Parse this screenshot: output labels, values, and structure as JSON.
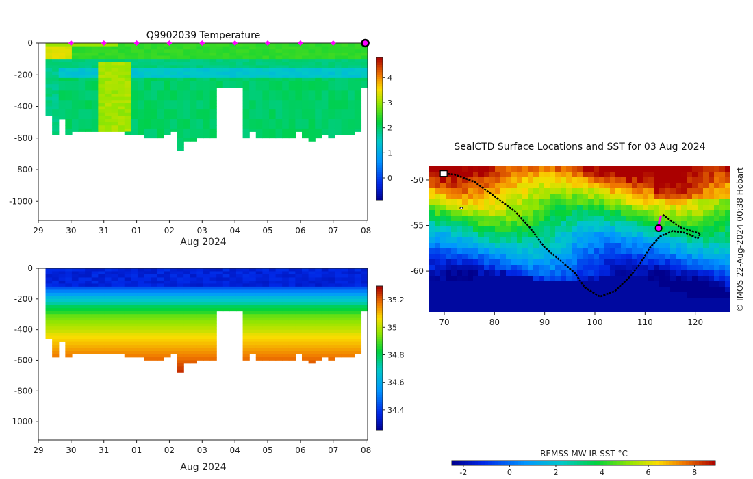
{
  "chart_data": [
    {
      "type": "heatmap",
      "title": "Q9902039  Temperature",
      "x_tick_labels": [
        "29",
        "30",
        "31",
        "01",
        "02",
        "03",
        "04",
        "05",
        "06",
        "07",
        "08"
      ],
      "xlabel": "Aug 2024",
      "y_tick_values": [
        0,
        -200,
        -400,
        -600,
        -800,
        -1000
      ],
      "ylim": [
        -1120,
        0
      ],
      "colorbar_ticks": [
        0,
        1,
        2,
        3,
        4
      ],
      "colorbar_range": [
        -0.9,
        4.8
      ],
      "profile_markers_days": [
        1,
        2,
        3,
        4,
        5,
        6,
        7,
        8,
        9
      ],
      "last_profile_marker_day": 10,
      "profile_max_depths": [
        460,
        580,
        470,
        580,
        550,
        550,
        550,
        550,
        550,
        550,
        550,
        560,
        580,
        580,
        580,
        590,
        600,
        600,
        580,
        560,
        670,
        620,
        610,
        600,
        600,
        600,
        600,
        600,
        610,
        560,
        600,
        560,
        600,
        600,
        600,
        590,
        590,
        590,
        550,
        600,
        610,
        600,
        580,
        590,
        580,
        580,
        580,
        560,
        390
      ],
      "profile_gaps": [
        [
          5.5,
          6.2
        ],
        [
          9.9,
          10.5
        ]
      ]
    },
    {
      "type": "heatmap",
      "title": "",
      "x_tick_labels": [
        "29",
        "30",
        "31",
        "01",
        "02",
        "03",
        "04",
        "05",
        "06",
        "07",
        "08"
      ],
      "xlabel": "Aug 2024",
      "y_tick_values": [
        0,
        -200,
        -400,
        -600,
        -800,
        -1000
      ],
      "ylim": [
        -1120,
        0
      ],
      "colorbar_ticks": [
        34.4,
        34.6,
        34.8,
        35,
        35.2
      ],
      "colorbar_range": [
        34.25,
        35.3
      ]
    },
    {
      "type": "heatmap",
      "title": "SealCTD Surface Locations and SST for 03 Aug 2024",
      "x_tick_values": [
        70,
        80,
        90,
        100,
        110,
        120
      ],
      "y_tick_values": [
        -50,
        -55,
        -60
      ],
      "xlim": [
        67,
        127
      ],
      "ylim": [
        -64.5,
        -48.5
      ],
      "colorbar_label": "REMSS MW-IR SST °C",
      "colorbar_ticks": [
        -2,
        0,
        2,
        4,
        6,
        8
      ],
      "colorbar_range": [
        -2.5,
        8.9
      ],
      "track_lon_lat": [
        [
          69.5,
          -49.3
        ],
        [
          72,
          -49.4
        ],
        [
          76,
          -50.2
        ],
        [
          80,
          -51.8
        ],
        [
          84,
          -53.4
        ],
        [
          87,
          -55.2
        ],
        [
          90,
          -57.4
        ],
        [
          93,
          -58.8
        ],
        [
          96,
          -60.2
        ],
        [
          98,
          -61.8
        ],
        [
          101,
          -62.8
        ],
        [
          104,
          -62.2
        ],
        [
          107,
          -60.6
        ],
        [
          109,
          -59.2
        ],
        [
          111,
          -57.4
        ],
        [
          113,
          -56.2
        ],
        [
          115.5,
          -55.6
        ],
        [
          118,
          -55.8
        ],
        [
          120.5,
          -56.4
        ],
        [
          121,
          -55.9
        ],
        [
          117,
          -55.2
        ],
        [
          114.5,
          -54.2
        ],
        [
          113.5,
          -53.8
        ]
      ],
      "current_lon_lat": [
        112.7,
        -55.3
      ],
      "recent_lon_lat": [
        [
          112.7,
          -55.3
        ],
        [
          112.8,
          -54.6
        ],
        [
          113.2,
          -53.9
        ]
      ]
    }
  ],
  "credit": "© IMOS 22-Aug-2024 00:38 Hobart",
  "colors": {
    "profile_marker": "#ff00ff",
    "track": "#000000",
    "axis": "#222222"
  }
}
